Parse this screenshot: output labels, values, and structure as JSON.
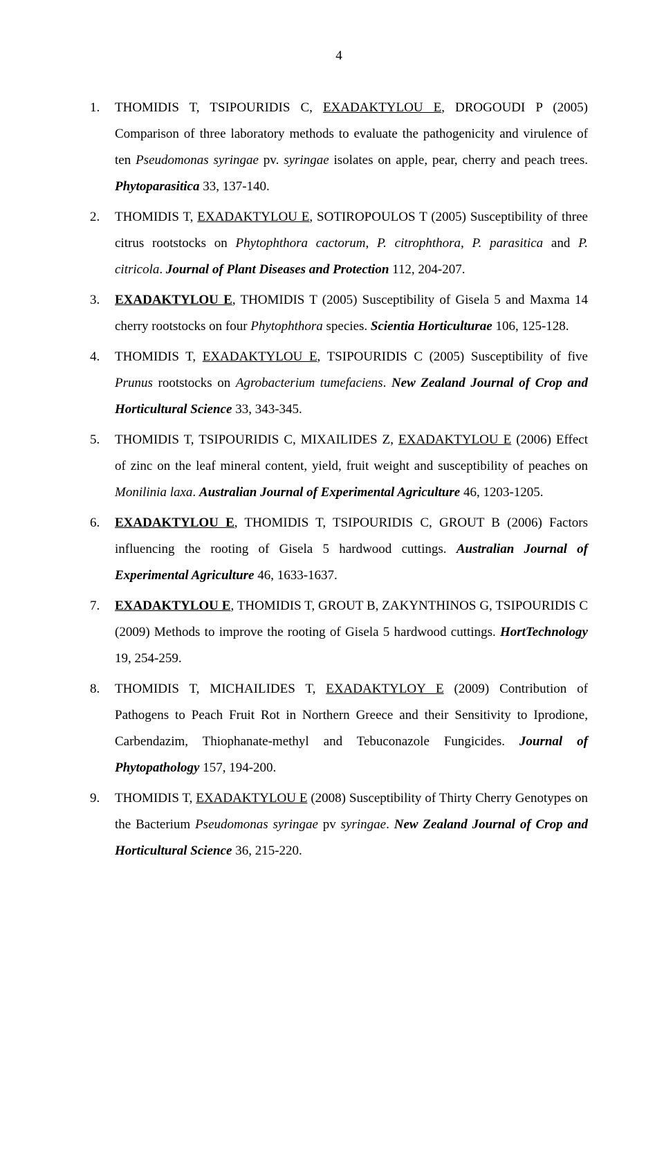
{
  "page_number": "4",
  "references": [
    {
      "num": "1.",
      "segments": [
        {
          "t": "THOMIDIS T, TSIPOURIDIS C, "
        },
        {
          "t": "EXADAKTYLOU E",
          "cls": "u"
        },
        {
          "t": ", DROGOUDI P (2005) Comparison of three laboratory methods to evaluate the pathogenicity and virulence of ten "
        },
        {
          "t": "Pseudomonas syringae",
          "cls": "i"
        },
        {
          "t": " pv. "
        },
        {
          "t": "syringae",
          "cls": "i"
        },
        {
          "t": " isolates on apple, pear, cherry and peach trees. "
        },
        {
          "t": "Phytoparasitica",
          "cls": "bi"
        },
        {
          "t": " 33, 137-140."
        }
      ]
    },
    {
      "num": "2.",
      "segments": [
        {
          "t": "THOMIDIS T, "
        },
        {
          "t": "EXADAKTYLOU E",
          "cls": "u"
        },
        {
          "t": ", SOTIROPOULOS T (2005) Susceptibility of three citrus rootstocks on "
        },
        {
          "t": "Phytophthora cactorum, P. citrophthora, P. parasitica",
          "cls": "i"
        },
        {
          "t": " and "
        },
        {
          "t": "P. citricola",
          "cls": "i"
        },
        {
          "t": ". "
        },
        {
          "t": "Journal of Plant Diseases and Protection",
          "cls": "bi"
        },
        {
          "t": " 112, 204-207."
        }
      ]
    },
    {
      "num": "3.",
      "segments": [
        {
          "t": "EXADAKTYLOU E",
          "cls": "auth-u"
        },
        {
          "t": ", THOMIDIS T (2005) Susceptibility of Gisela 5 and Maxma 14 cherry rootstocks on four "
        },
        {
          "t": "Phytophthora",
          "cls": "i"
        },
        {
          "t": " species. "
        },
        {
          "t": "Scientia Horticulturae",
          "cls": "bi"
        },
        {
          "t": " 106, 125-128."
        }
      ]
    },
    {
      "num": "4.",
      "segments": [
        {
          "t": "THOMIDIS T, "
        },
        {
          "t": "EXADAKTYLOU E",
          "cls": "u"
        },
        {
          "t": ", TSIPOURIDIS C (2005) Susceptibility of five "
        },
        {
          "t": "Prunus",
          "cls": "i"
        },
        {
          "t": " rootstocks on "
        },
        {
          "t": "Agrobacterium tumefaciens",
          "cls": "i"
        },
        {
          "t": ". "
        },
        {
          "t": "New Zealand Journal of Crop and Horticultural Science",
          "cls": "bi"
        },
        {
          "t": " 33, 343-345."
        }
      ]
    },
    {
      "num": "5.",
      "segments": [
        {
          "t": "THOMIDIS T, TSIPOURIDIS C, MIXAILIDES Z, "
        },
        {
          "t": "EXADAKTYLOU E",
          "cls": "u"
        },
        {
          "t": " (2006) Effect of zinc on the leaf mineral content, yield, fruit weight and susceptibility of peaches on "
        },
        {
          "t": "Monilinia laxa",
          "cls": "i"
        },
        {
          "t": ". "
        },
        {
          "t": "Australian Journal of Experimental Agriculture",
          "cls": "bi"
        },
        {
          "t": " 46, 1203-1205."
        }
      ]
    },
    {
      "num": "6.",
      "segments": [
        {
          "t": "EXADAKTYLOU E",
          "cls": "auth-u"
        },
        {
          "t": ", THOMIDIS T, TSIPOURIDIS C, GROUT B (2006) Factors influencing the rooting of Gisela 5 hardwood cuttings. "
        },
        {
          "t": "Australian Journal of Experimental Agriculture",
          "cls": "bi"
        },
        {
          "t": " 46, 1633-1637."
        }
      ]
    },
    {
      "num": "7.",
      "segments": [
        {
          "t": "EXADAKTYLOU E",
          "cls": "auth-u"
        },
        {
          "t": ", THOMIDIS T, GROUT B, ZAKYNTHINOS G, TSIPOURIDIS C (2009) Methods to improve the rooting of Gisela 5 hardwood cuttings. "
        },
        {
          "t": "HortTechnology",
          "cls": "bi"
        },
        {
          "t": " 19, 254-259."
        }
      ]
    },
    {
      "num": "8.",
      "segments": [
        {
          "t": "THOMIDIS T, MICHAILIDES T, "
        },
        {
          "t": "EXADAKTYLOY E",
          "cls": "u"
        },
        {
          "t": " (2009) Contribution of Pathogens to Peach Fruit Rot in Northern Greece and their Sensitivity to Iprodione, Carbendazim, Thiophanate-methyl and Tebuconazole Fungicides. "
        },
        {
          "t": "Journal of Phytopathology",
          "cls": "bi"
        },
        {
          "t": " 157, 194-200."
        }
      ]
    },
    {
      "num": "9.",
      "segments": [
        {
          "t": "THOMIDIS T, "
        },
        {
          "t": "EXADAKTYLOU E",
          "cls": "u"
        },
        {
          "t": " (2008) Susceptibility of Thirty Cherry Genotypes on the Bacterium "
        },
        {
          "t": "Pseudomonas syringae",
          "cls": "i"
        },
        {
          "t": " pv "
        },
        {
          "t": "syringae",
          "cls": "i"
        },
        {
          "t": ". "
        },
        {
          "t": "New Zealand Journal of Crop and Horticultural Science",
          "cls": "bi"
        },
        {
          "t": " 36, 215-220."
        }
      ]
    }
  ]
}
